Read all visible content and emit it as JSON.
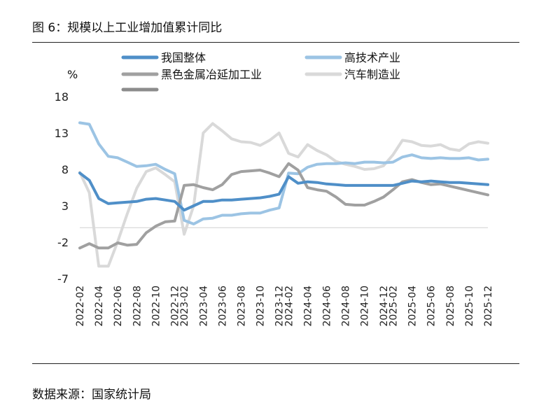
{
  "header": {
    "title": "图 6：规模以上工业增加值累计同比"
  },
  "footer": {
    "source": "数据来源：国家统计局"
  },
  "chart_data": {
    "type": "line",
    "title": "图 6：规模以上工业增加值累计同比",
    "ylabel": "%",
    "xlabel": "",
    "ylim": [
      -7,
      18
    ],
    "yticks": [
      18,
      13,
      8,
      3,
      -2,
      -7
    ],
    "zero_line": true,
    "legend_position": "top",
    "x": [
      "2022-02",
      "2022-03",
      "2022-04",
      "2022-05",
      "2022-06",
      "2022-07",
      "2022-08",
      "2022-09",
      "2022-10",
      "2022-11",
      "2022-12",
      "2023-02",
      "2023-03",
      "2023-04",
      "2023-05",
      "2023-06",
      "2023-07",
      "2023-08",
      "2023-09",
      "2023-10",
      "2023-11",
      "2023-12",
      "2024-02",
      "2024-03",
      "2024-04",
      "2024-05",
      "2024-06",
      "2024-07",
      "2024-08",
      "2024-09",
      "2024-10",
      "2024-11",
      "2024-12",
      "2025-02",
      "2025-03",
      "2025-04",
      "2025-05",
      "2025-06",
      "2025-07",
      "2025-08",
      "2025-09",
      "2025-10",
      "2025-11",
      "2025-12"
    ],
    "xtick_labels": [
      "2022-02",
      "2022-04",
      "2022-06",
      "2022-08",
      "2022-10",
      "2022-12",
      "2023-02",
      "2023-04",
      "2023-06",
      "2023-08",
      "2023-10",
      "2023-12",
      "2024-02",
      "2024-04",
      "2024-06",
      "2024-08",
      "2024-10",
      "2024-12",
      "2025-02",
      "2025-04",
      "2025-06",
      "2025-08",
      "2025-10",
      "2025-12"
    ],
    "series": [
      {
        "name": "我国整体",
        "color": "#4f8fc8",
        "values": [
          7.5,
          6.5,
          4.0,
          3.3,
          3.4,
          3.5,
          3.6,
          3.9,
          4.0,
          3.8,
          3.6,
          2.4,
          3.0,
          3.6,
          3.6,
          3.8,
          3.8,
          3.9,
          4.0,
          4.1,
          4.3,
          4.6,
          7.0,
          6.1,
          6.3,
          6.2,
          6.0,
          5.9,
          5.8,
          5.8,
          5.8,
          5.8,
          5.8,
          5.8,
          6.1,
          6.4,
          6.3,
          6.4,
          6.3,
          6.2,
          6.2,
          6.1,
          6.0,
          5.9
        ]
      },
      {
        "name": "高技术产业",
        "color": "#9cc4e4",
        "values": [
          14.4,
          14.2,
          11.5,
          9.8,
          9.6,
          9.0,
          8.4,
          8.5,
          8.7,
          8.0,
          7.4,
          1.0,
          0.5,
          1.2,
          1.3,
          1.7,
          1.7,
          1.9,
          2.0,
          2.0,
          2.4,
          2.7,
          7.5,
          7.4,
          8.3,
          8.7,
          8.8,
          8.8,
          8.9,
          8.8,
          9.0,
          9.0,
          8.9,
          9.0,
          9.7,
          10.0,
          9.6,
          9.5,
          9.6,
          9.5,
          9.5,
          9.6,
          9.3,
          9.4
        ]
      },
      {
        "name": "黑色金属冶延加工业",
        "color": "#a0a0a0",
        "values": [
          -2.8,
          -2.2,
          -2.8,
          -2.8,
          -2.1,
          -2.4,
          -2.3,
          -0.7,
          0.2,
          0.8,
          0.9,
          5.8,
          5.9,
          5.5,
          5.2,
          5.9,
          7.3,
          7.7,
          7.8,
          7.9,
          7.5,
          7.0,
          8.8,
          7.9,
          5.5,
          5.2,
          5.0,
          4.2,
          3.2,
          3.1,
          3.1,
          3.6,
          4.2,
          5.2,
          6.3,
          6.6,
          6.2,
          5.9,
          6.0,
          5.7,
          5.4,
          5.1,
          4.8,
          4.5
        ]
      },
      {
        "name": "汽车制造业",
        "color": "#d9d9d9",
        "values": [
          7.6,
          4.8,
          -5.3,
          -5.3,
          -1.9,
          1.9,
          5.4,
          7.7,
          8.2,
          7.3,
          6.3,
          -0.9,
          3.0,
          13.0,
          14.3,
          13.3,
          12.2,
          11.8,
          11.7,
          11.3,
          12.0,
          13.0,
          10.2,
          9.7,
          11.4,
          10.6,
          10.0,
          9.1,
          8.7,
          8.4,
          8.0,
          8.1,
          8.5,
          10.0,
          12.0,
          11.8,
          11.3,
          11.2,
          11.4,
          10.8,
          10.6,
          11.5,
          11.8,
          11.6
        ]
      }
    ]
  }
}
